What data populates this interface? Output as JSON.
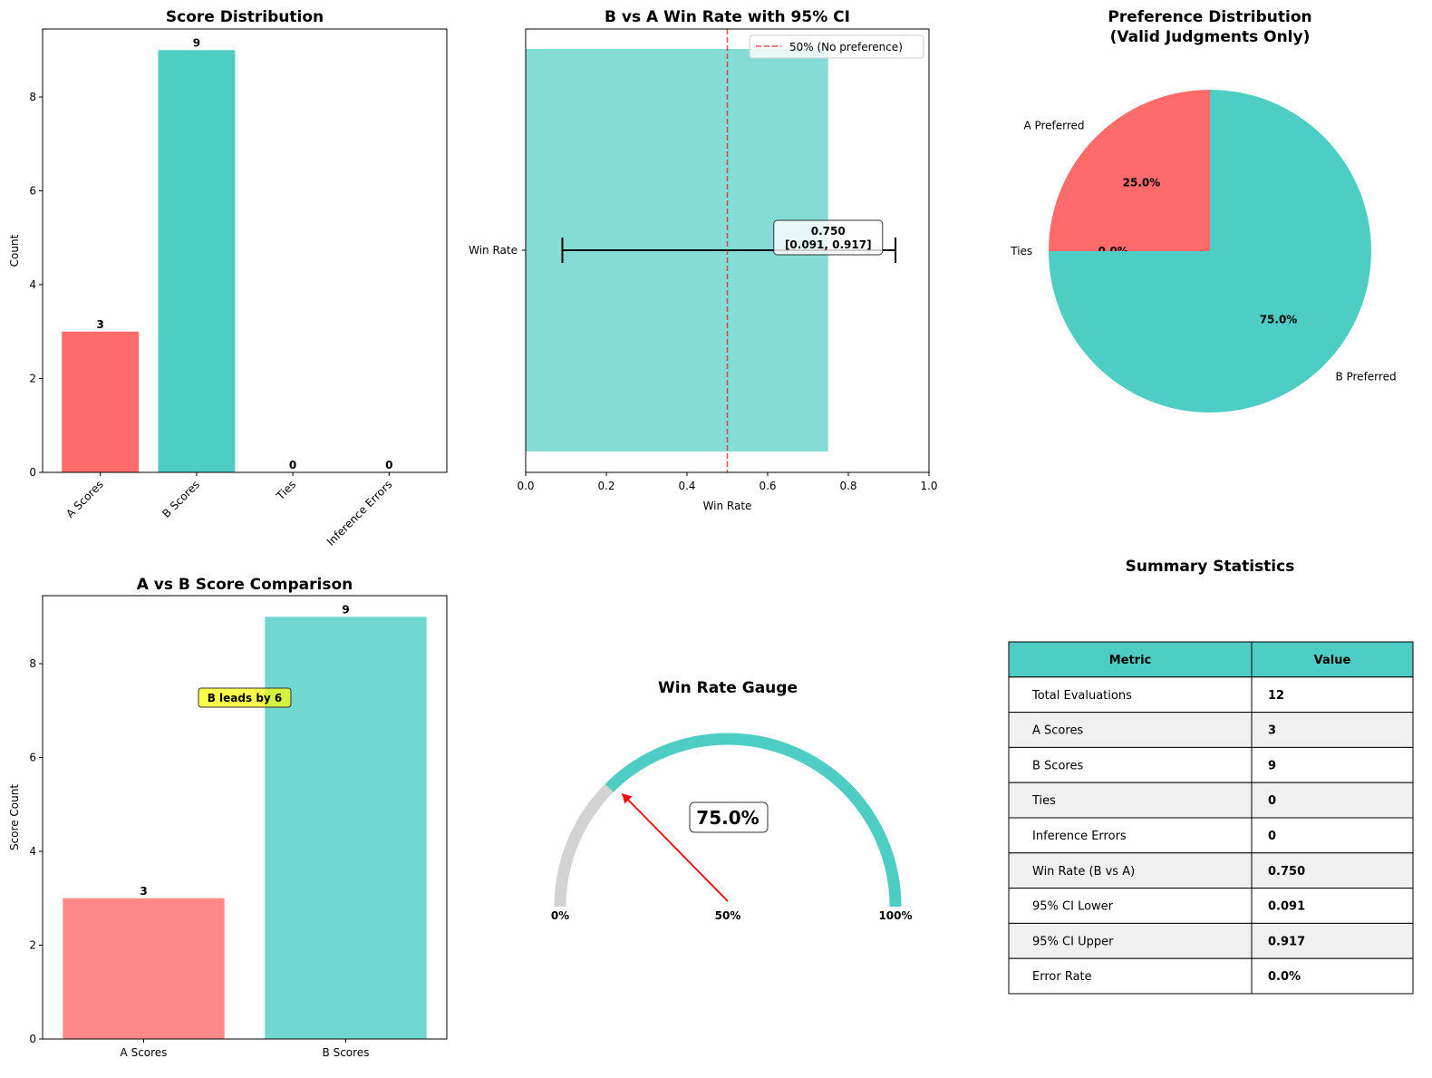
{
  "colors": {
    "a": "#FF6B6B",
    "b": "#4ECDC4",
    "ties": "#cccccc",
    "gray": "#d3d3d3",
    "ref": "#ff0000",
    "annot": "#ffff00"
  },
  "chart_data": [
    {
      "id": "score_distribution",
      "type": "bar",
      "title": "Score Distribution",
      "ylabel": "Count",
      "categories": [
        "A Scores",
        "B Scores",
        "Ties",
        "Inference Errors"
      ],
      "values": [
        3,
        9,
        0,
        0
      ],
      "data_labels": [
        "3",
        "9",
        "0",
        "0"
      ],
      "yticks": [
        "0",
        "2",
        "4",
        "6",
        "8"
      ],
      "ylim": [
        0,
        9.45
      ]
    },
    {
      "id": "win_rate_ci",
      "type": "bar",
      "orientation": "horizontal",
      "title": "B vs A Win Rate with 95% CI",
      "xlabel": "Win Rate",
      "categories": [
        "Win Rate"
      ],
      "values": [
        0.75
      ],
      "ci": [
        0.091,
        0.917
      ],
      "annotation": [
        "0.750",
        "[0.091, 0.917]"
      ],
      "reference_line": {
        "x": 0.5,
        "label": "50% (No preference)"
      },
      "xticks": [
        "0.0",
        "0.2",
        "0.4",
        "0.6",
        "0.8",
        "1.0"
      ],
      "xlim": [
        0,
        1
      ],
      "legend": "top-right"
    },
    {
      "id": "preference_distribution",
      "type": "pie",
      "title": [
        "Preference Distribution",
        "(Valid Judgments Only)"
      ],
      "labels": [
        "A Preferred",
        "Ties",
        "B Preferred"
      ],
      "values": [
        25,
        0,
        75
      ],
      "pct_labels": [
        "25.0%",
        "0.0%",
        "75.0%"
      ]
    },
    {
      "id": "score_comparison",
      "type": "bar",
      "title": "A vs B Score Comparison",
      "ylabel": "Score Count",
      "categories": [
        "A Scores",
        "B Scores"
      ],
      "values": [
        3,
        9
      ],
      "data_labels": [
        "3",
        "9"
      ],
      "annotation": "B leads by 6",
      "yticks": [
        "0",
        "2",
        "4",
        "6",
        "8"
      ],
      "ylim": [
        0,
        9.45
      ]
    },
    {
      "id": "win_rate_gauge",
      "type": "gauge",
      "title": "Win Rate Gauge",
      "value": 0.75,
      "value_label": "75.0%",
      "tick_labels": [
        "0%",
        "50%",
        "100%"
      ]
    },
    {
      "id": "summary_statistics",
      "type": "table",
      "title": "Summary Statistics",
      "columns": [
        "Metric",
        "Value"
      ],
      "rows": [
        [
          "Total Evaluations",
          "12"
        ],
        [
          "A Scores",
          "3"
        ],
        [
          "B Scores",
          "9"
        ],
        [
          "Ties",
          "0"
        ],
        [
          "Inference Errors",
          "0"
        ],
        [
          "Win Rate (B vs A)",
          "0.750"
        ],
        [
          "95% CI Lower",
          "0.091"
        ],
        [
          "95% CI Upper",
          "0.917"
        ],
        [
          "Error Rate",
          "0.0%"
        ]
      ]
    }
  ]
}
